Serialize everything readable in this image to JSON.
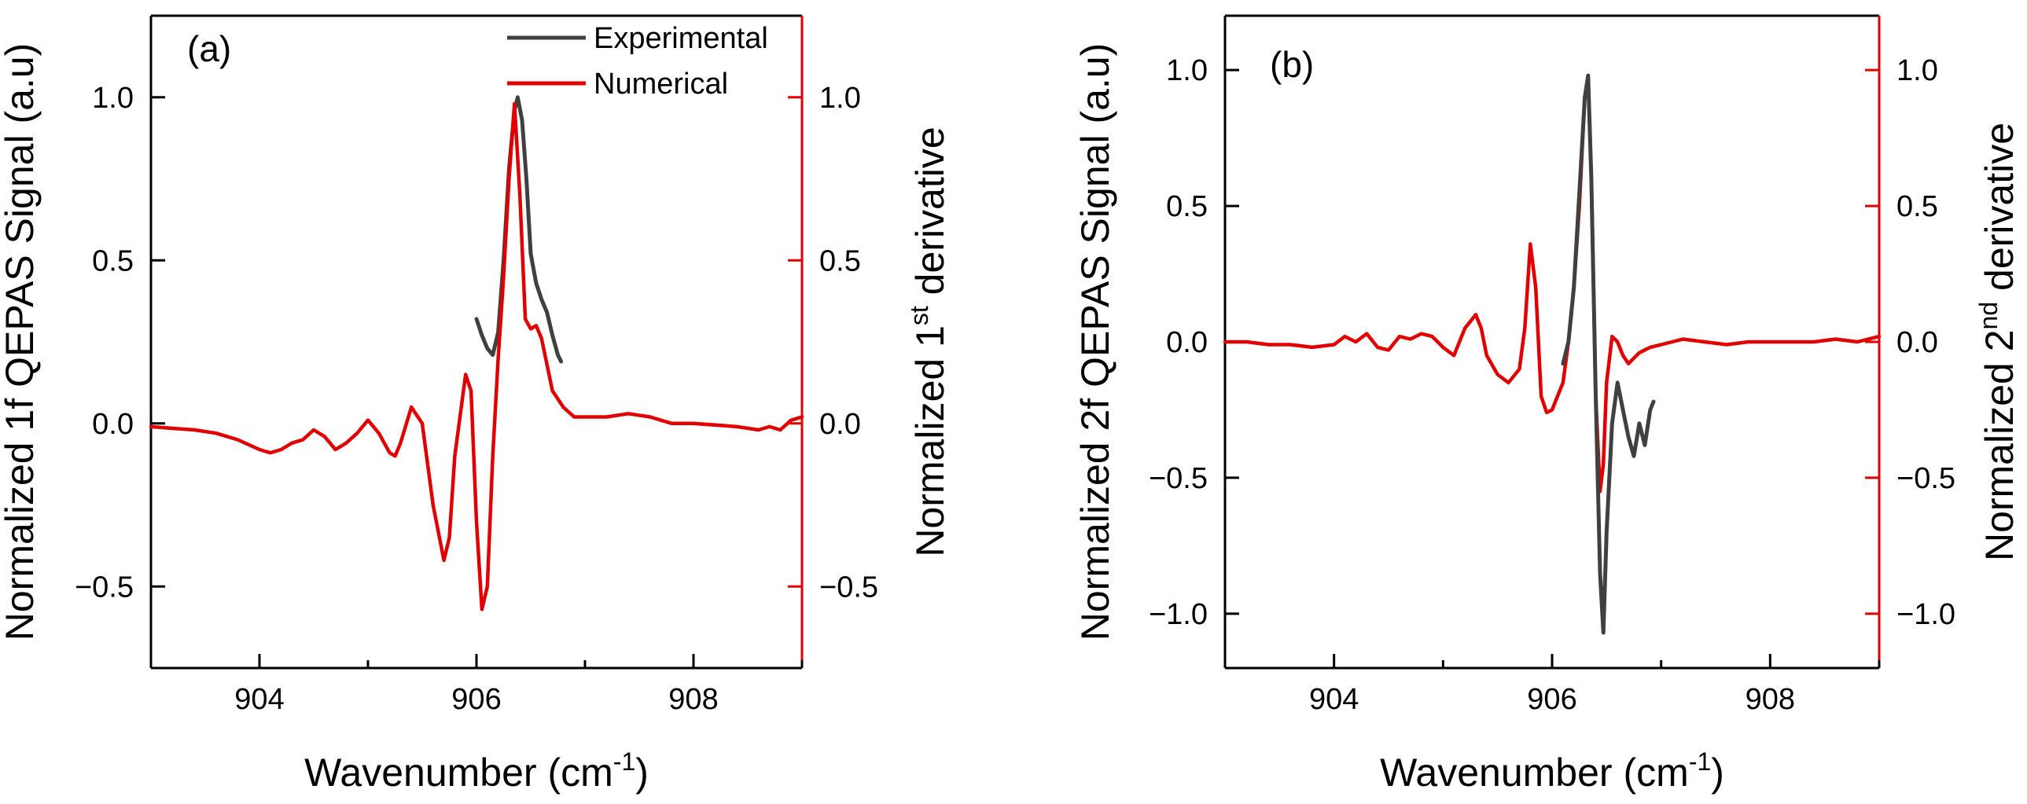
{
  "colors": {
    "experimental": "#404040",
    "numerical": "#e00000",
    "axis": "#000000",
    "right_axis": "#e00000"
  },
  "chart_data": [
    {
      "type": "line",
      "panel_label": "(a)",
      "xlabel_main": "Wavenumber (cm",
      "xlabel_sup": "-1",
      "xlabel_end": ")",
      "ylabel_left": "Normalized 1f QEPAS Signal (a.u)",
      "ylabel_right_main": "Normalized 1",
      "ylabel_right_sup": "st",
      "ylabel_right_end": " derivative",
      "xlim": [
        903.0,
        909.0
      ],
      "ylim_left": [
        -0.75,
        1.25
      ],
      "ylim_right": [
        -0.75,
        1.25
      ],
      "x_ticks": [
        904,
        906,
        908
      ],
      "x_tick_labels": [
        "904",
        "906",
        "908"
      ],
      "y_ticks": [
        -0.5,
        0.0,
        0.5,
        1.0
      ],
      "y_tick_labels_left": [
        "−0.5",
        "0.0",
        "0.5",
        "1.0"
      ],
      "y_ticks_right": [
        -0.5,
        0.0,
        0.5,
        1.0
      ],
      "y_tick_labels_right": [
        "−0.5",
        "0.0",
        "0.5",
        "1.0"
      ],
      "legend": [
        "Experimental",
        "Numerical"
      ],
      "series": [
        {
          "name": "Experimental",
          "x": [
            906.0,
            906.05,
            906.1,
            906.15,
            906.2,
            906.25,
            906.3,
            906.35,
            906.38,
            906.42,
            906.46,
            906.5,
            906.55,
            906.6,
            906.65,
            906.7,
            906.75,
            906.78
          ],
          "y": [
            0.32,
            0.27,
            0.23,
            0.21,
            0.28,
            0.5,
            0.78,
            0.96,
            1.0,
            0.93,
            0.75,
            0.52,
            0.43,
            0.38,
            0.34,
            0.27,
            0.21,
            0.19
          ]
        },
        {
          "name": "Numerical",
          "x": [
            903.0,
            903.2,
            903.4,
            903.6,
            903.8,
            904.0,
            904.1,
            904.2,
            904.3,
            904.4,
            904.5,
            904.6,
            904.7,
            904.8,
            904.9,
            905.0,
            905.1,
            905.2,
            905.25,
            905.3,
            905.4,
            905.5,
            905.6,
            905.7,
            905.75,
            905.8,
            905.9,
            905.95,
            906.0,
            906.05,
            906.1,
            906.15,
            906.2,
            906.25,
            906.3,
            906.35,
            906.4,
            906.45,
            906.5,
            906.55,
            906.6,
            906.65,
            906.7,
            906.8,
            906.9,
            907.0,
            907.2,
            907.4,
            907.6,
            907.8,
            908.0,
            908.2,
            908.4,
            908.6,
            908.7,
            908.8,
            908.9,
            909.0
          ],
          "y": [
            -0.01,
            -0.015,
            -0.02,
            -0.03,
            -0.05,
            -0.08,
            -0.09,
            -0.08,
            -0.06,
            -0.05,
            -0.02,
            -0.04,
            -0.08,
            -0.06,
            -0.03,
            0.01,
            -0.03,
            -0.09,
            -0.1,
            -0.06,
            0.05,
            0.0,
            -0.25,
            -0.42,
            -0.35,
            -0.1,
            0.15,
            0.1,
            -0.3,
            -0.57,
            -0.5,
            -0.1,
            0.2,
            0.45,
            0.75,
            0.98,
            0.7,
            0.32,
            0.29,
            0.3,
            0.26,
            0.18,
            0.1,
            0.05,
            0.02,
            0.02,
            0.02,
            0.03,
            0.02,
            0.0,
            0.0,
            -0.005,
            -0.01,
            -0.02,
            -0.01,
            -0.02,
            0.01,
            0.02
          ]
        }
      ]
    },
    {
      "type": "line",
      "panel_label": "(b)",
      "xlabel_main": "Wavenumber (cm",
      "xlabel_sup": "-1",
      "xlabel_end": ")",
      "ylabel_left": "Normalized 2f QEPAS Signal (a.u)",
      "ylabel_right_main": "Normalized 2",
      "ylabel_right_sup": "nd",
      "ylabel_right_end": " derivative",
      "xlim": [
        903.0,
        909.0
      ],
      "ylim_left": [
        -1.2,
        1.2
      ],
      "ylim_right": [
        -1.2,
        1.2
      ],
      "x_ticks": [
        904,
        906,
        908
      ],
      "x_tick_labels": [
        "904",
        "906",
        "908"
      ],
      "y_ticks": [
        -1.0,
        -0.5,
        0.0,
        0.5,
        1.0
      ],
      "y_tick_labels_left": [
        "−1.0",
        "−0.5",
        "0.0",
        "0.5",
        "1.0"
      ],
      "y_ticks_right": [
        -1.0,
        -0.5,
        0.0,
        0.5,
        1.0
      ],
      "y_tick_labels_right": [
        "−1.0",
        "−0.5",
        "0.0",
        "0.5",
        "1.0"
      ],
      "legend": [],
      "series": [
        {
          "name": "Experimental",
          "x": [
            906.1,
            906.15,
            906.2,
            906.25,
            906.3,
            906.33,
            906.36,
            906.4,
            906.44,
            906.47,
            906.5,
            906.55,
            906.6,
            906.65,
            906.7,
            906.75,
            906.8,
            906.85,
            906.9,
            906.93
          ],
          "y": [
            -0.08,
            0.0,
            0.2,
            0.55,
            0.9,
            0.98,
            0.6,
            -0.2,
            -0.85,
            -1.07,
            -0.7,
            -0.3,
            -0.15,
            -0.25,
            -0.35,
            -0.42,
            -0.3,
            -0.38,
            -0.25,
            -0.22
          ]
        },
        {
          "name": "Numerical",
          "x": [
            903.0,
            903.2,
            903.4,
            903.6,
            903.8,
            904.0,
            904.1,
            904.2,
            904.3,
            904.4,
            904.5,
            904.6,
            904.7,
            904.8,
            904.9,
            905.0,
            905.1,
            905.2,
            905.3,
            905.35,
            905.4,
            905.5,
            905.6,
            905.7,
            905.75,
            905.8,
            905.85,
            905.9,
            905.95,
            906.0,
            906.05,
            906.1,
            906.15,
            906.2,
            906.25,
            906.3,
            906.33,
            906.36,
            906.4,
            906.44,
            906.47,
            906.5,
            906.55,
            906.6,
            906.65,
            906.7,
            906.8,
            906.9,
            907.0,
            907.2,
            907.4,
            907.6,
            907.8,
            908.0,
            908.2,
            908.4,
            908.6,
            908.8,
            909.0
          ],
          "y": [
            0.0,
            0.0,
            -0.01,
            -0.01,
            -0.02,
            -0.01,
            0.02,
            0.0,
            0.03,
            -0.02,
            -0.03,
            0.02,
            0.01,
            0.03,
            0.02,
            -0.02,
            -0.05,
            0.05,
            0.1,
            0.05,
            -0.05,
            -0.12,
            -0.15,
            -0.1,
            0.05,
            0.36,
            0.2,
            -0.2,
            -0.26,
            -0.25,
            -0.2,
            -0.15,
            0.0,
            0.2,
            0.5,
            0.9,
            0.98,
            0.6,
            -0.2,
            -0.55,
            -0.45,
            -0.15,
            0.02,
            0.0,
            -0.05,
            -0.08,
            -0.04,
            -0.02,
            -0.01,
            0.01,
            0.0,
            -0.01,
            0.0,
            0.0,
            0.0,
            0.0,
            0.01,
            0.0,
            0.02
          ]
        }
      ]
    }
  ]
}
